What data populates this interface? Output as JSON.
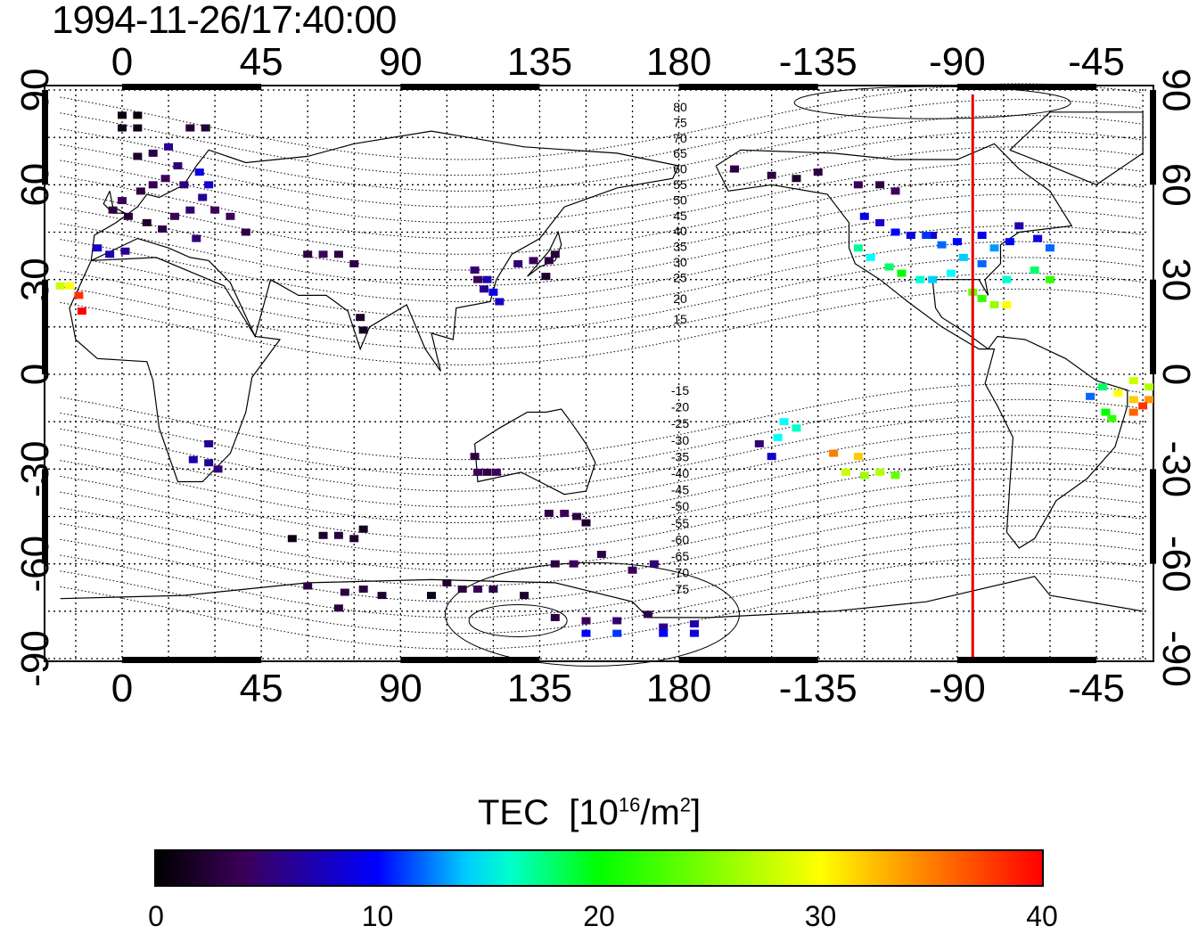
{
  "timestamp": "1994-11-26/17:40:00",
  "map": {
    "lon_labels": [
      "0",
      "45",
      "90",
      "135",
      "180",
      "-135",
      "-90",
      "-45"
    ],
    "lon_values": [
      0,
      45,
      90,
      135,
      180,
      225,
      270,
      315
    ],
    "lat_labels": [
      "90",
      "60",
      "30",
      "0",
      "-30",
      "-60",
      "-90"
    ],
    "lat_values": [
      90,
      60,
      30,
      0,
      -30,
      -60,
      -90
    ],
    "lon_range_east": [
      -20,
      330
    ],
    "lat_range": [
      -92,
      93
    ],
    "magnetic_latitude_labels_north": [
      "80",
      "75",
      "70",
      "65",
      "60",
      "55",
      "50",
      "45",
      "40",
      "35",
      "30",
      "25",
      "20",
      "15"
    ],
    "magnetic_latitude_labels_south": [
      "-15",
      "-20",
      "-25",
      "-30",
      "-35",
      "-40",
      "-45",
      "-50",
      "-55",
      "-60",
      "-65",
      "-70",
      "-75"
    ],
    "terminator_longitude": -85,
    "terminator_color": "#e00000",
    "grid": true
  },
  "colorbar": {
    "title": "TEC",
    "unit_base": "10",
    "unit_exponent": "16",
    "unit_tail": "/m",
    "unit_sq": "2",
    "ticks": [
      "0",
      "10",
      "20",
      "30",
      "40"
    ],
    "range": [
      0,
      40
    ]
  },
  "chart_data": {
    "type": "scatter",
    "title": "1994-11-26/17:40:00",
    "xlabel": "",
    "ylabel": "",
    "value_label": "TEC [10^16/m^2]",
    "xlim_east": [
      -20,
      330
    ],
    "ylim": [
      -92,
      93
    ],
    "points": [
      [
        0,
        82,
        0.5
      ],
      [
        5,
        82,
        0.5
      ],
      [
        0,
        78,
        1.2
      ],
      [
        5,
        78,
        1.2
      ],
      [
        22,
        78,
        2.5
      ],
      [
        27,
        78,
        2.5
      ],
      [
        5,
        69,
        2
      ],
      [
        10,
        70,
        3
      ],
      [
        15,
        72,
        6
      ],
      [
        18,
        66,
        5
      ],
      [
        14,
        62,
        4
      ],
      [
        10,
        60,
        3.5
      ],
      [
        6,
        58,
        3
      ],
      [
        0,
        55,
        4
      ],
      [
        -3,
        52,
        3
      ],
      [
        2,
        50,
        2.5
      ],
      [
        8,
        48,
        2
      ],
      [
        13,
        46,
        3
      ],
      [
        17,
        50,
        4
      ],
      [
        22,
        52,
        5
      ],
      [
        26,
        56,
        6
      ],
      [
        28,
        60,
        8
      ],
      [
        25,
        64,
        9
      ],
      [
        20,
        60,
        5
      ],
      [
        30,
        52,
        4
      ],
      [
        35,
        50,
        4
      ],
      [
        40,
        45,
        3
      ],
      [
        -8,
        40,
        8
      ],
      [
        -4,
        38,
        7
      ],
      [
        1,
        39,
        6
      ],
      [
        24,
        43,
        5
      ],
      [
        -20,
        28,
        28
      ],
      [
        -17,
        28,
        30
      ],
      [
        -14,
        25,
        38
      ],
      [
        -13,
        20,
        40
      ],
      [
        60,
        38,
        3
      ],
      [
        65,
        38,
        4
      ],
      [
        70,
        38,
        3
      ],
      [
        75,
        35,
        3
      ],
      [
        77,
        18,
        2
      ],
      [
        78,
        14,
        1.5
      ],
      [
        114,
        33,
        5
      ],
      [
        115,
        30,
        4
      ],
      [
        117,
        27,
        6
      ],
      [
        120,
        26,
        9
      ],
      [
        122,
        23,
        8
      ],
      [
        118,
        30,
        7
      ],
      [
        128,
        35,
        5
      ],
      [
        133,
        36,
        4
      ],
      [
        138,
        36,
        3
      ],
      [
        140,
        38,
        2.5
      ],
      [
        137,
        31,
        2
      ],
      [
        28,
        -22,
        6
      ],
      [
        23,
        -27,
        7
      ],
      [
        28,
        -28,
        6
      ],
      [
        31,
        -30,
        5
      ],
      [
        114,
        -26,
        3
      ],
      [
        115,
        -31,
        4
      ],
      [
        118,
        -31,
        3
      ],
      [
        121,
        -31,
        4
      ],
      [
        138,
        -44,
        3
      ],
      [
        143,
        -44,
        4
      ],
      [
        147,
        -45,
        3
      ],
      [
        150,
        -47,
        2
      ],
      [
        55,
        -52,
        1
      ],
      [
        65,
        -51,
        2
      ],
      [
        70,
        -51,
        3
      ],
      [
        75,
        -52,
        2
      ],
      [
        78,
        -49,
        1.5
      ],
      [
        140,
        -60,
        3
      ],
      [
        146,
        -60,
        4
      ],
      [
        155,
        -57,
        3
      ],
      [
        165,
        -62,
        4
      ],
      [
        172,
        -60,
        5
      ],
      [
        60,
        -67,
        3
      ],
      [
        72,
        -69,
        3
      ],
      [
        78,
        -68,
        3
      ],
      [
        84,
        -70,
        2
      ],
      [
        70,
        -74,
        3
      ],
      [
        105,
        -66,
        2
      ],
      [
        110,
        -68,
        3
      ],
      [
        115,
        -68,
        4
      ],
      [
        120,
        -68,
        3
      ],
      [
        100,
        -70,
        1
      ],
      [
        130,
        -70,
        2
      ],
      [
        140,
        -77,
        3
      ],
      [
        150,
        -78,
        4
      ],
      [
        160,
        -78,
        5
      ],
      [
        170,
        -76,
        3
      ],
      [
        175,
        -80,
        6
      ],
      [
        185,
        -79,
        7
      ],
      [
        150,
        -82,
        10
      ],
      [
        160,
        -82,
        11
      ],
      [
        175,
        -82,
        10
      ],
      [
        185,
        -82,
        9
      ],
      [
        198,
        65,
        3
      ],
      [
        210,
        63,
        3
      ],
      [
        218,
        62,
        2
      ],
      [
        225,
        64,
        3
      ],
      [
        238,
        60,
        4
      ],
      [
        245,
        60,
        3
      ],
      [
        250,
        58,
        4
      ],
      [
        240,
        50,
        9
      ],
      [
        245,
        48,
        8
      ],
      [
        250,
        45,
        10
      ],
      [
        255,
        44,
        9
      ],
      [
        262,
        44,
        8
      ],
      [
        270,
        42,
        10
      ],
      [
        238,
        40,
        17
      ],
      [
        242,
        37,
        15
      ],
      [
        248,
        34,
        18
      ],
      [
        252,
        32,
        20
      ],
      [
        258,
        30,
        16
      ],
      [
        262,
        30,
        14
      ],
      [
        268,
        32,
        15
      ],
      [
        272,
        37,
        14
      ],
      [
        278,
        35,
        12
      ],
      [
        282,
        40,
        13
      ],
      [
        287,
        42,
        10
      ],
      [
        260,
        44,
        11
      ],
      [
        265,
        41,
        12
      ],
      [
        278,
        44,
        9
      ],
      [
        290,
        47,
        7
      ],
      [
        296,
        43,
        9
      ],
      [
        300,
        40,
        12
      ],
      [
        286,
        30,
        16
      ],
      [
        295,
        33,
        18
      ],
      [
        300,
        30,
        22
      ],
      [
        275,
        26,
        24
      ],
      [
        278,
        24,
        22
      ],
      [
        282,
        22,
        26
      ],
      [
        286,
        22,
        30
      ],
      [
        214,
        -15,
        15
      ],
      [
        218,
        -17,
        16
      ],
      [
        212,
        -20,
        15
      ],
      [
        206,
        -22,
        5
      ],
      [
        210,
        -26,
        8
      ],
      [
        230,
        -25,
        35
      ],
      [
        238,
        -26,
        32
      ],
      [
        234,
        -31,
        28
      ],
      [
        240,
        -32,
        26
      ],
      [
        245,
        -31,
        27
      ],
      [
        250,
        -32,
        24
      ],
      [
        313,
        -7,
        12
      ],
      [
        317,
        -4,
        18
      ],
      [
        318,
        -12,
        20
      ],
      [
        320,
        -14,
        22
      ],
      [
        327,
        -2,
        28
      ],
      [
        332,
        -4,
        27
      ],
      [
        322,
        -6,
        30
      ],
      [
        327,
        -8,
        32
      ],
      [
        332,
        -8,
        34
      ],
      [
        327,
        -12,
        36
      ],
      [
        330,
        -10,
        38
      ]
    ]
  }
}
